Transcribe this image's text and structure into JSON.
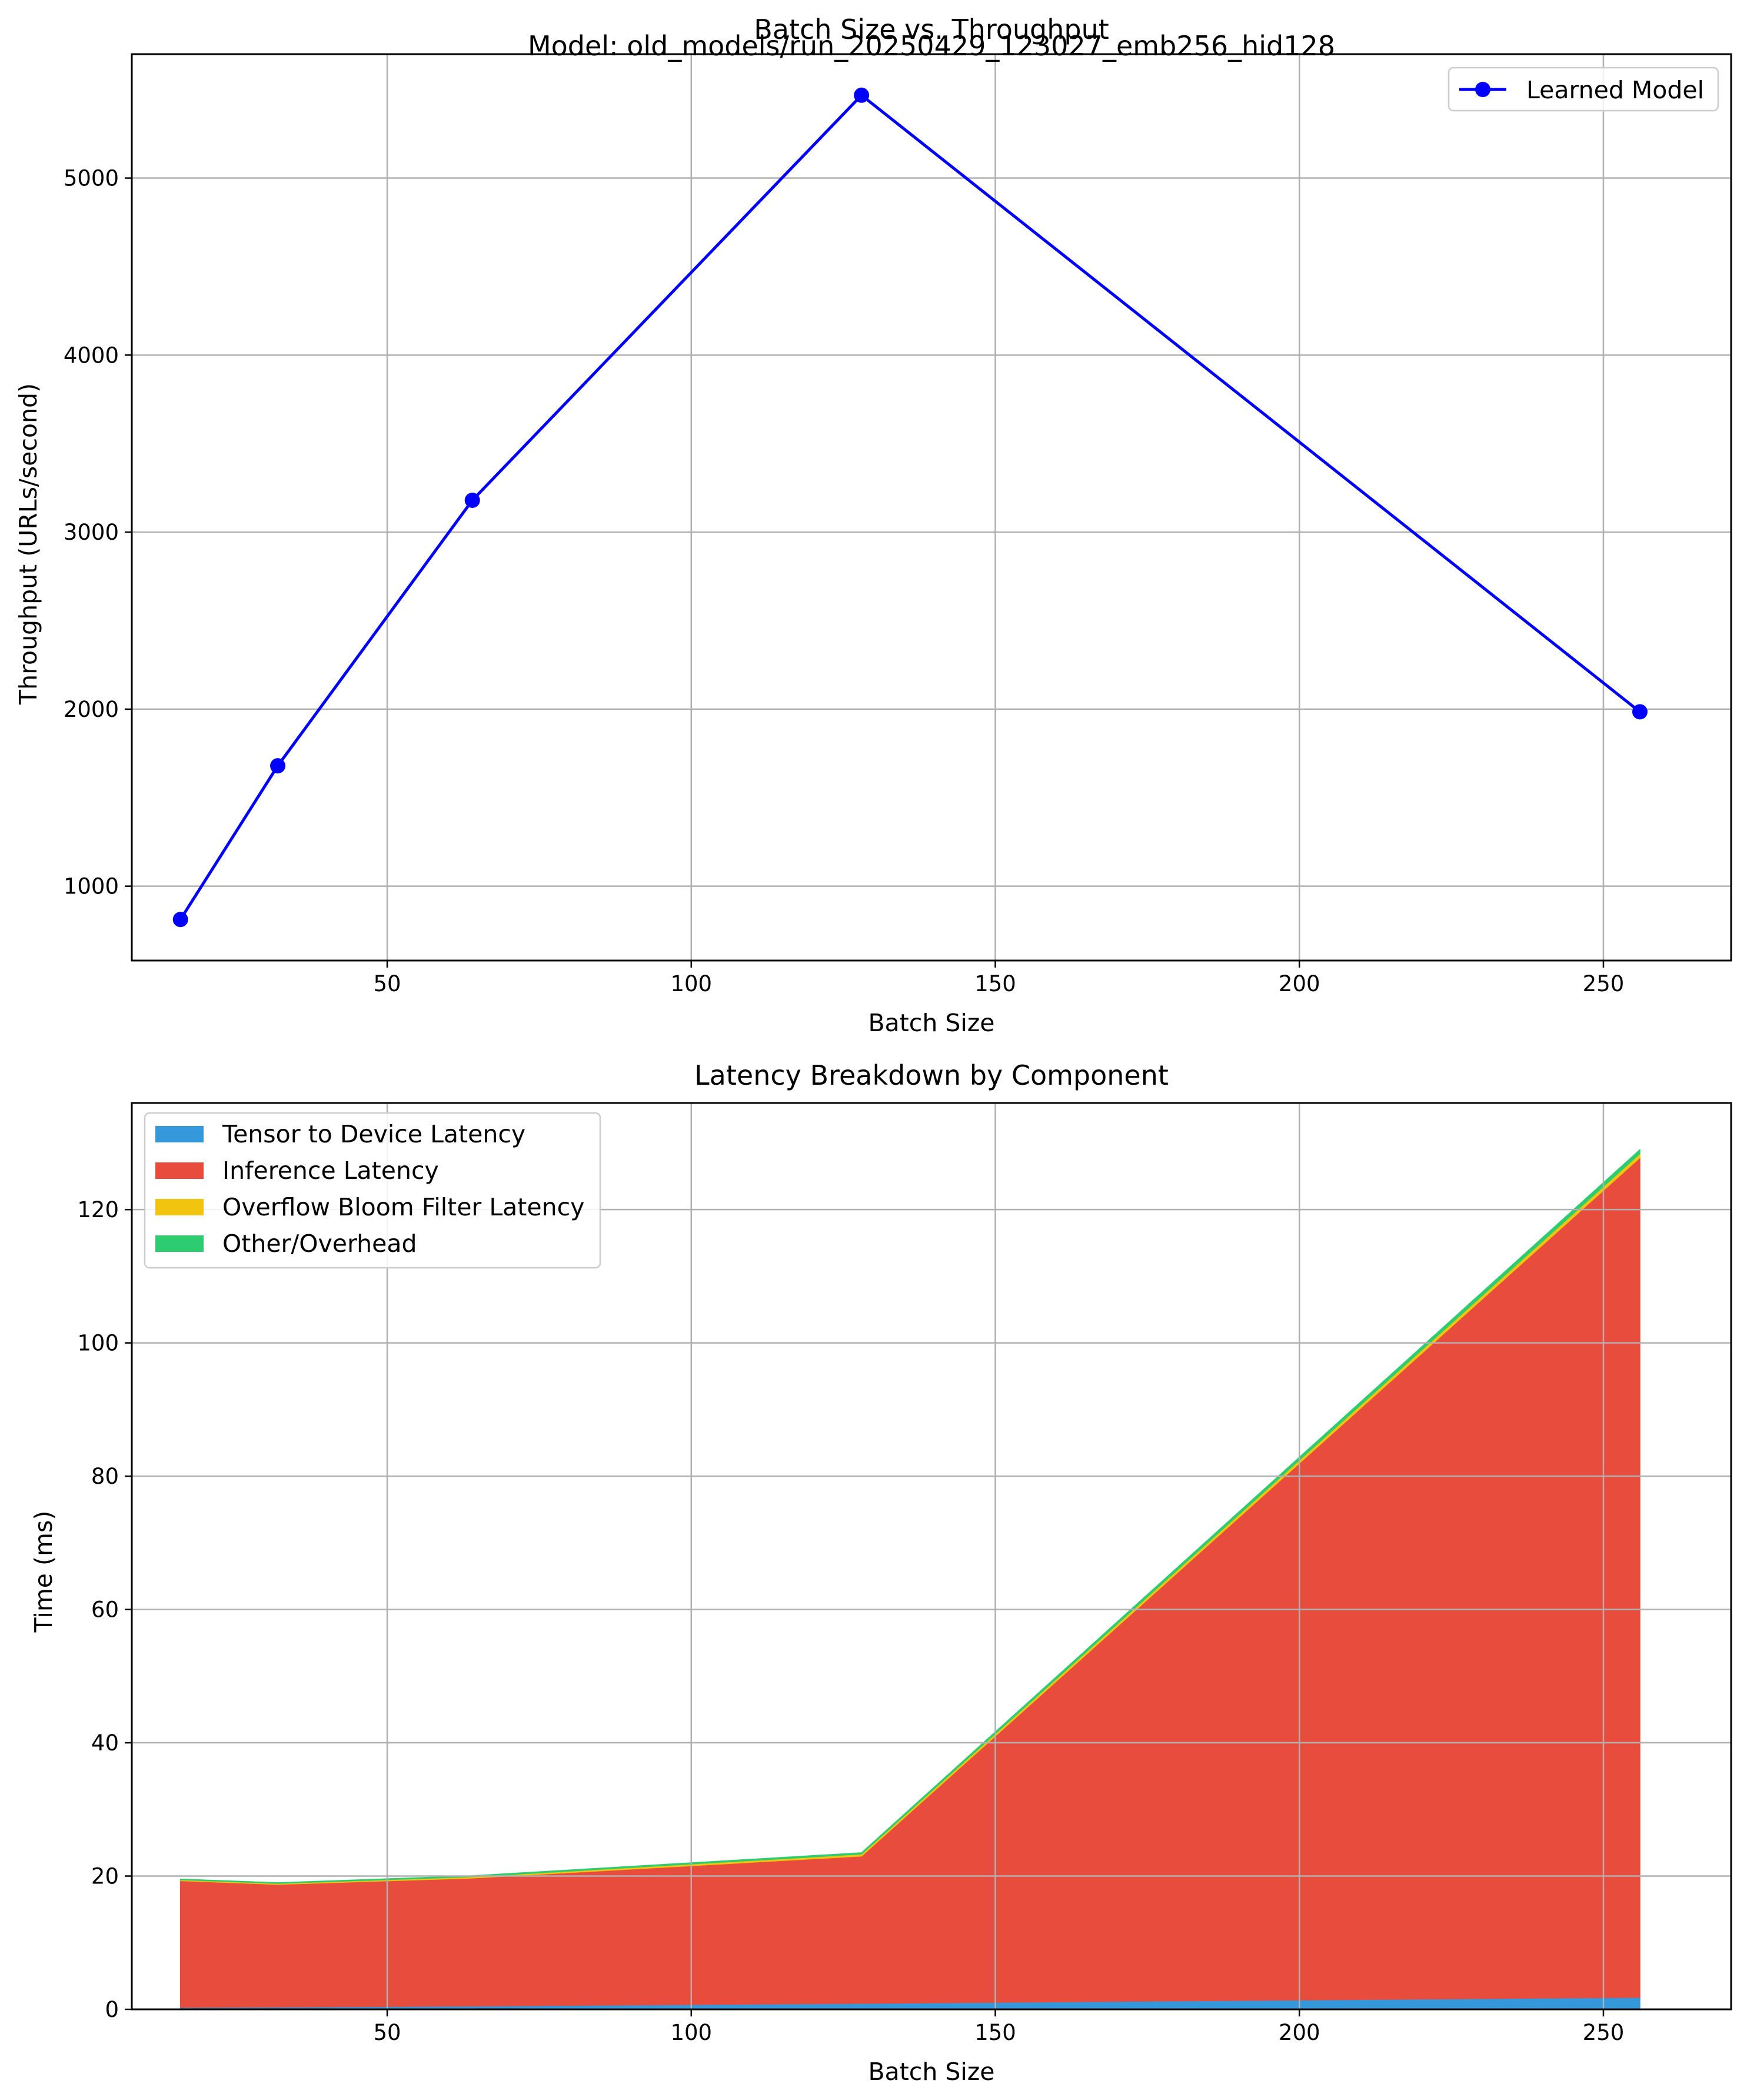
{
  "chart_data": [
    {
      "type": "line",
      "title": "Batch Size vs. Throughput",
      "subtitle": "Model: old_models/run_20250429_123027_emb256_hid128",
      "xlabel": "Batch Size",
      "ylabel": "Throughput (URLs/second)",
      "xlim": [
        8,
        271
      ],
      "ylim": [
        580,
        5700
      ],
      "xticks": [
        50,
        100,
        150,
        200,
        250
      ],
      "yticks": [
        1000,
        2000,
        3000,
        4000,
        5000
      ],
      "grid": true,
      "legend_position": "top-right",
      "x": [
        16,
        32,
        64,
        128,
        256
      ],
      "series": [
        {
          "name": "Learned Model",
          "color": "#0000ff",
          "marker": "circle",
          "values": [
            812,
            1680,
            3180,
            5468,
            1985
          ]
        }
      ]
    },
    {
      "type": "area",
      "stacked": true,
      "title": "Latency Breakdown by Component",
      "xlabel": "Batch Size",
      "ylabel": "Time (ms)",
      "xlim": [
        8,
        271
      ],
      "ylim": [
        0,
        136
      ],
      "xticks": [
        50,
        100,
        150,
        200,
        250
      ],
      "yticks": [
        0,
        20,
        40,
        60,
        80,
        100,
        120
      ],
      "grid": true,
      "legend_position": "top-left",
      "x": [
        16,
        32,
        64,
        128,
        256
      ],
      "series": [
        {
          "name": "Tensor to Device Latency",
          "color": "#3498db",
          "values": [
            0.3,
            0.35,
            0.5,
            0.9,
            1.8
          ]
        },
        {
          "name": "Inference Latency",
          "color": "#e74c3c",
          "values": [
            19.0,
            18.4,
            19.2,
            22.1,
            126.0
          ]
        },
        {
          "name": "Overflow Bloom Filter Latency",
          "color": "#f1c40f",
          "values": [
            0.15,
            0.15,
            0.2,
            0.3,
            0.6
          ]
        },
        {
          "name": "Other/Overhead",
          "color": "#2ecc71",
          "values": [
            0.1,
            0.1,
            0.15,
            0.2,
            0.6
          ]
        }
      ]
    }
  ]
}
